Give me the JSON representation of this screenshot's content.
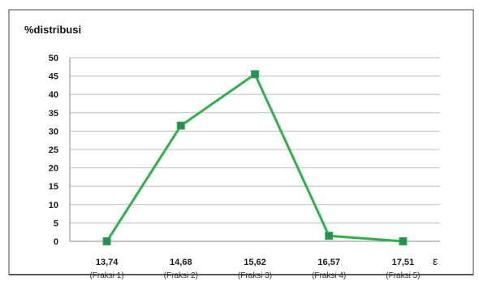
{
  "chart_data": {
    "type": "line",
    "title": "%distribusi",
    "xlabel": "ε",
    "ylabel": "",
    "ylim": [
      0,
      50
    ],
    "yticks": [
      "0",
      "5",
      "10",
      "15",
      "20",
      "25",
      "30",
      "35",
      "40",
      "45",
      "50"
    ],
    "grid": true,
    "legend": "none",
    "categories": [
      "13,74",
      "14,68",
      "15,62",
      "16,57",
      "17,51"
    ],
    "category_sublabels": [
      "(Fraksi 1)",
      "(Fraksi 2)",
      "(Fraksi 3)",
      "(Fraksi 4)",
      "(Fraksi 5)"
    ],
    "series": [
      {
        "values": [
          0,
          31.5,
          45.5,
          1.5,
          0
        ],
        "color": "#2db34a",
        "marker_color": "#2a8c5a"
      }
    ]
  }
}
